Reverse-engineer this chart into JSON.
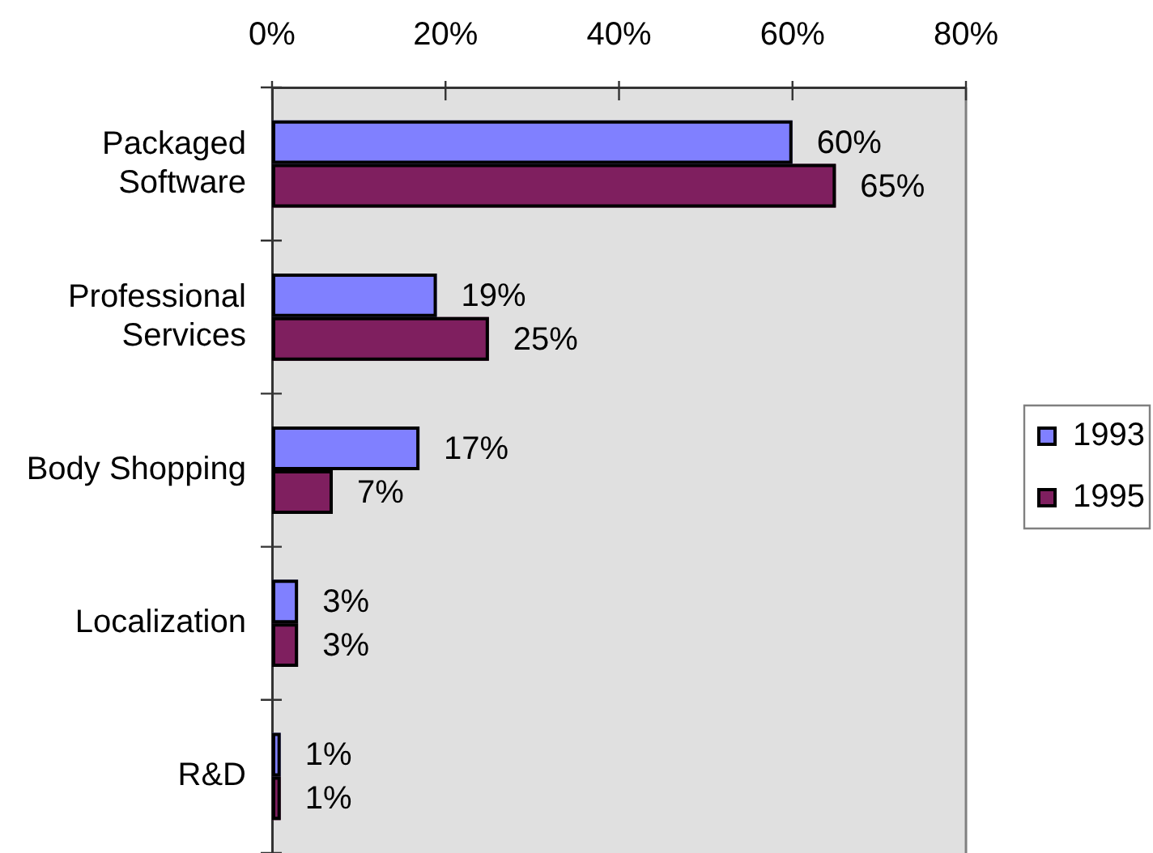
{
  "chart_data": {
    "type": "bar",
    "orientation": "horizontal",
    "categories": [
      "Packaged Software",
      "Professional Services",
      "Body Shopping",
      "Localization",
      "R&D"
    ],
    "series": [
      {
        "name": "1993",
        "color": "#8080ff",
        "values": [
          60,
          19,
          17,
          3,
          1
        ],
        "value_labels": [
          "60%",
          "19%",
          "17%",
          "3%",
          "1%"
        ]
      },
      {
        "name": "1995",
        "color": "#7f1f5f",
        "values": [
          65,
          25,
          7,
          3,
          1
        ],
        "value_labels": [
          "65%",
          "25%",
          "7%",
          "3%",
          "1%"
        ]
      }
    ],
    "xlim": [
      0,
      80
    ],
    "xticks": [
      {
        "value": 0,
        "label": "0%"
      },
      {
        "value": 20,
        "label": "20%"
      },
      {
        "value": 40,
        "label": "40%"
      },
      {
        "value": 60,
        "label": "60%"
      },
      {
        "value": 80,
        "label": "80%"
      }
    ],
    "grid": false,
    "legend": "right"
  }
}
